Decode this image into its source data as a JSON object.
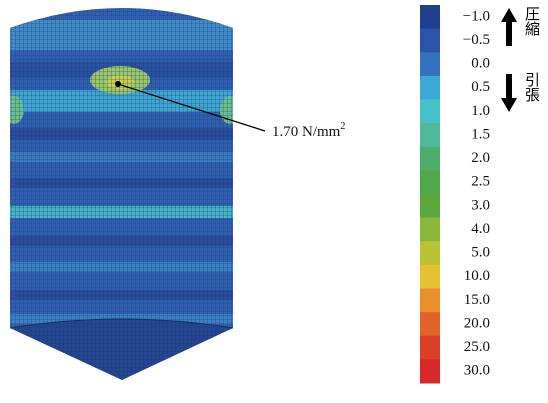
{
  "legend": {
    "entries": [
      {
        "label": "−1.0",
        "color": "#1f3f8f"
      },
      {
        "label": "−0.5",
        "color": "#2a55a8"
      },
      {
        "label": "0.0",
        "color": "#3472bd"
      },
      {
        "label": "0.5",
        "color": "#3ba8d6"
      },
      {
        "label": "1.0",
        "color": "#45c2c8"
      },
      {
        "label": "1.5",
        "color": "#4fb99a"
      },
      {
        "label": "2.0",
        "color": "#4cae6a"
      },
      {
        "label": "2.5",
        "color": "#4fa84a"
      },
      {
        "label": "3.0",
        "color": "#5aa83c"
      },
      {
        "label": "4.0",
        "color": "#8cb83a"
      },
      {
        "label": "5.0",
        "color": "#b8c434"
      },
      {
        "label": "10.0",
        "color": "#e4c232"
      },
      {
        "label": "15.0",
        "color": "#e8902e"
      },
      {
        "label": "20.0",
        "color": "#e2622c"
      },
      {
        "label": "25.0",
        "color": "#dc3e2a"
      },
      {
        "label": "30.0",
        "color": "#d62a2a"
      }
    ],
    "compression": "圧縮",
    "tension": "引張"
  },
  "annotation": {
    "text": "1.70 N/mm",
    "superscript": "2"
  }
}
